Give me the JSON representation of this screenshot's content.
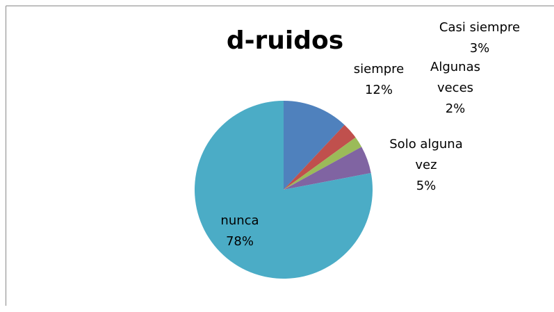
{
  "chart_data": {
    "type": "pie",
    "title": "d-ruidos",
    "categories": [
      "siempre",
      "Casi siempre",
      "Algunas veces",
      "Solo alguna vez",
      "nunca"
    ],
    "values": [
      12,
      3,
      2,
      5,
      78
    ],
    "value_labels": [
      "12%",
      "3%",
      "2%",
      "5%",
      "78%"
    ],
    "colors": [
      "#4f81bd",
      "#c0504d",
      "#9bbb59",
      "#8064a2",
      "#4bacc6"
    ]
  }
}
